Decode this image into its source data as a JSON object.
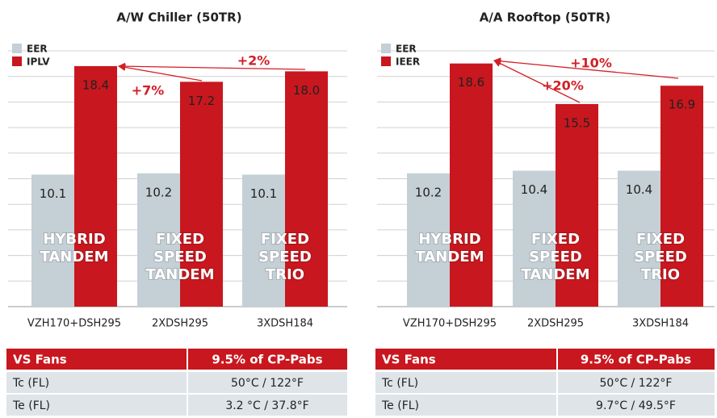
{
  "chart_data": [
    {
      "type": "bar",
      "title": "A/W Chiller (50TR)",
      "categories": [
        "VZH170+DSH295",
        "2XDSH295",
        "3XDSH184"
      ],
      "series": [
        {
          "name": "EER",
          "color": "#c5cfd6",
          "values": [
            10.1,
            10.2,
            10.1
          ],
          "value_labels": [
            "10.1",
            "10.2",
            "10.1"
          ]
        },
        {
          "name": "IPLV",
          "color": "#c8171e",
          "values": [
            18.4,
            17.2,
            18.0
          ],
          "value_labels": [
            "18.4",
            "17.2",
            "18.0"
          ]
        }
      ],
      "bar_labels": [
        [
          "HYBRID",
          "TANDEM"
        ],
        [
          "FIXED",
          "SPEED",
          "TANDEM"
        ],
        [
          "FIXED",
          "SPEED",
          "TRIO"
        ]
      ],
      "annotations": [
        "+7%",
        "+2%"
      ],
      "ylim": [
        0,
        20
      ],
      "grid": true
    },
    {
      "type": "bar",
      "title": "A/A Rooftop (50TR)",
      "categories": [
        "VZH170+DSH295",
        "2XDSH295",
        "3XDSH184"
      ],
      "series": [
        {
          "name": "EER",
          "color": "#c5cfd6",
          "values": [
            10.2,
            10.4,
            10.4
          ],
          "value_labels": [
            "10.2",
            "10.4",
            "10.4"
          ]
        },
        {
          "name": "IEER",
          "color": "#c8171e",
          "values": [
            18.6,
            15.5,
            16.9
          ],
          "value_labels": [
            "18.6",
            "15.5",
            "16.9"
          ]
        }
      ],
      "bar_labels": [
        [
          "HYBRID",
          "TANDEM"
        ],
        [
          "FIXED",
          "SPEED",
          "TANDEM"
        ],
        [
          "FIXED",
          "SPEED",
          "TRIO"
        ]
      ],
      "annotations": [
        "+20%",
        "+10%"
      ],
      "ylim": [
        0,
        20
      ],
      "grid": true
    }
  ],
  "tables": [
    {
      "header": [
        "VS Fans",
        "9.5% of CP-Pabs"
      ],
      "rows": [
        [
          "Tc (FL)",
          "50°C / 122°F"
        ],
        [
          "Te (FL)",
          "3.2 °C / 37.8°F"
        ]
      ]
    },
    {
      "header": [
        "VS Fans",
        "9.5% of CP-Pabs"
      ],
      "rows": [
        [
          "Tc (FL)",
          "50°C / 122°F"
        ],
        [
          "Te (FL)",
          "9.7°C / 49.5°F"
        ]
      ]
    }
  ]
}
